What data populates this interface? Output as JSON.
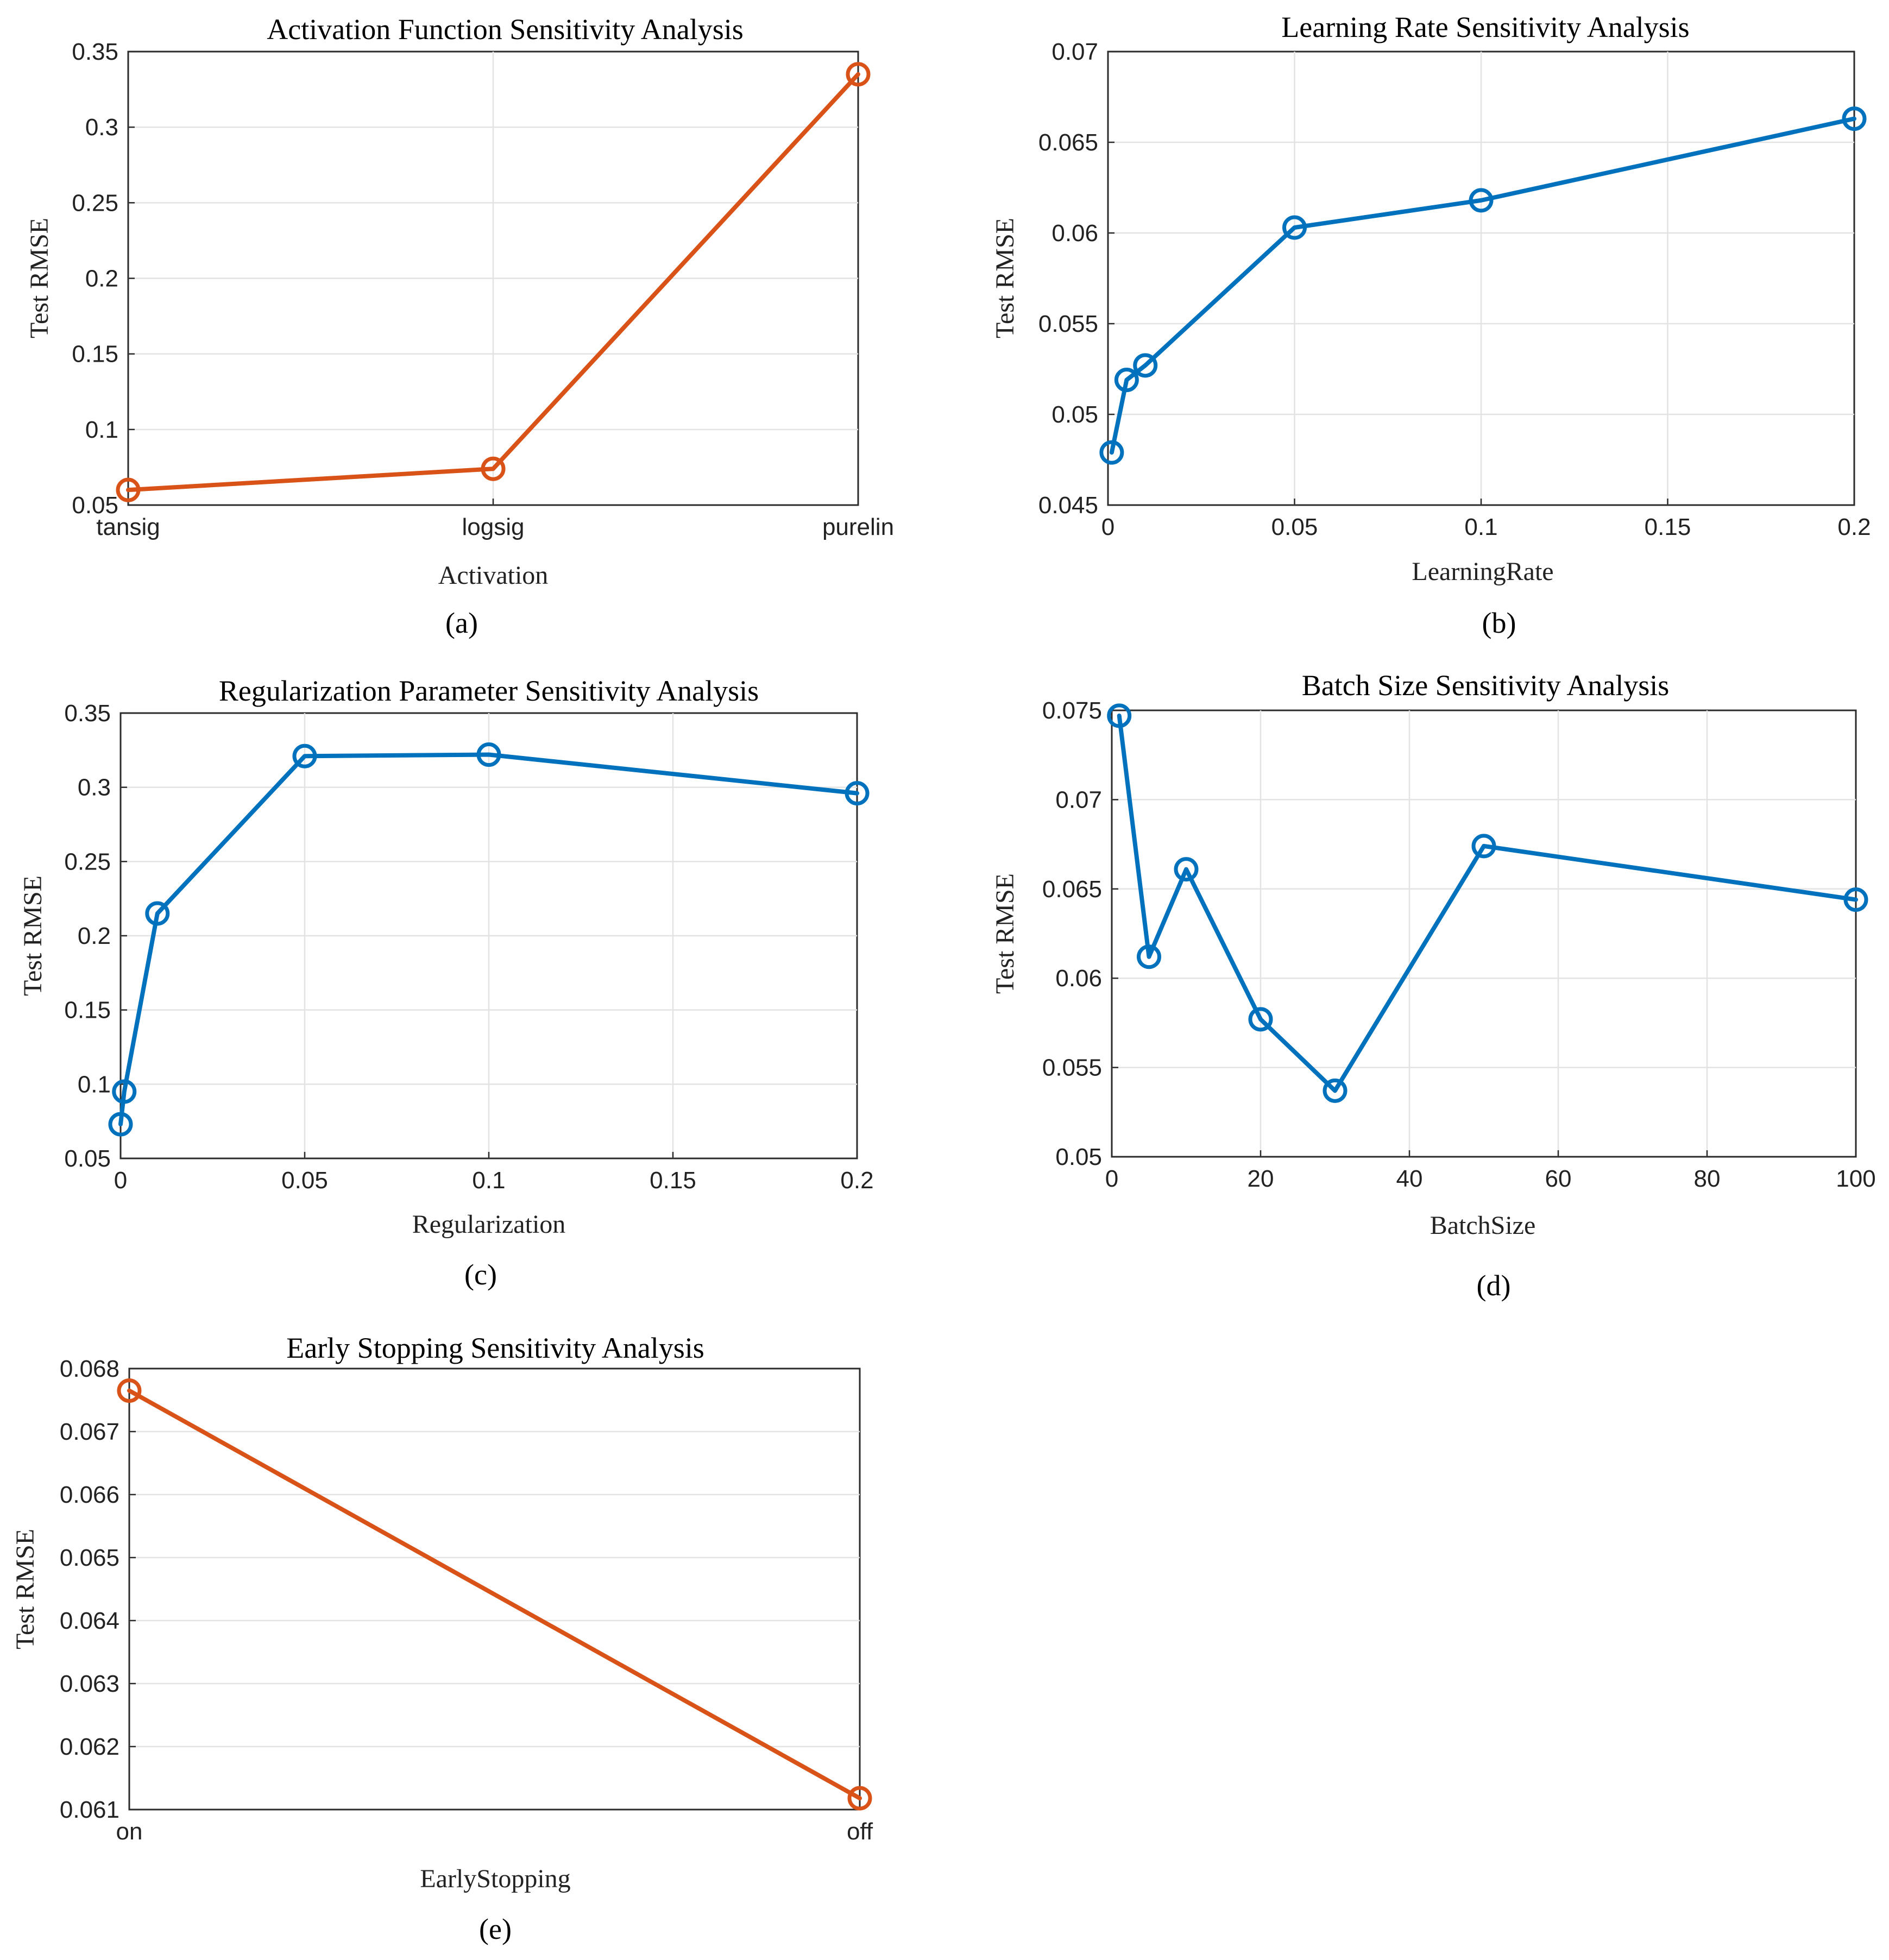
{
  "colors": {
    "blue": "#0072bd",
    "orange": "#d95319"
  },
  "chart_data": [
    {
      "id": "a",
      "type": "line",
      "color": "#d95319",
      "categorical": true,
      "title": "Activation Function Sensitivity Analysis",
      "xlabel": "Activation",
      "ylabel": "Test RMSE",
      "caption": "(a)",
      "x": [
        0,
        1,
        2
      ],
      "y": [
        0.06,
        0.074,
        0.335
      ],
      "xlim": [
        0,
        2
      ],
      "ylim": [
        0.05,
        0.35
      ],
      "xticks": [
        0,
        1,
        2
      ],
      "xtick_labels": [
        "tansig",
        "logsig",
        "purelin"
      ],
      "yticks": [
        0.05,
        0.1,
        0.15,
        0.2,
        0.25,
        0.3,
        0.35
      ],
      "ytick_labels": [
        "0.05",
        "0.1",
        "0.15",
        "0.2",
        "0.25",
        "0.3",
        "0.35"
      ],
      "grid": true
    },
    {
      "id": "b",
      "type": "line",
      "color": "#0072bd",
      "title": "Learning Rate Sensitivity Analysis",
      "xlabel": "LearningRate",
      "ylabel": "Test RMSE",
      "caption": "(b)",
      "x": [
        0.001,
        0.005,
        0.01,
        0.05,
        0.1,
        0.2
      ],
      "y": [
        0.0479,
        0.0519,
        0.0527,
        0.0603,
        0.0618,
        0.0663
      ],
      "xlim": [
        0,
        0.2
      ],
      "ylim": [
        0.045,
        0.07
      ],
      "xticks": [
        0,
        0.05,
        0.1,
        0.15,
        0.2
      ],
      "xtick_labels": [
        "0",
        "0.05",
        "0.1",
        "0.15",
        "0.2"
      ],
      "yticks": [
        0.045,
        0.05,
        0.055,
        0.06,
        0.065,
        0.07
      ],
      "ytick_labels": [
        "0.045",
        "0.05",
        "0.055",
        "0.06",
        "0.065",
        "0.07"
      ],
      "grid": true
    },
    {
      "id": "c",
      "type": "line",
      "color": "#0072bd",
      "title": "Regularization Parameter Sensitivity Analysis",
      "xlabel": "Regularization",
      "ylabel": "Test RMSE",
      "caption": "(c)",
      "x": [
        0,
        0.001,
        0.01,
        0.05,
        0.1,
        0.2
      ],
      "y": [
        0.073,
        0.095,
        0.215,
        0.321,
        0.322,
        0.296
      ],
      "xlim": [
        0,
        0.2
      ],
      "ylim": [
        0.05,
        0.35
      ],
      "xticks": [
        0,
        0.05,
        0.1,
        0.15,
        0.2
      ],
      "xtick_labels": [
        "0",
        "0.05",
        "0.1",
        "0.15",
        "0.2"
      ],
      "yticks": [
        0.05,
        0.1,
        0.15,
        0.2,
        0.25,
        0.3,
        0.35
      ],
      "ytick_labels": [
        "0.05",
        "0.1",
        "0.15",
        "0.2",
        "0.25",
        "0.3",
        "0.35"
      ],
      "grid": true
    },
    {
      "id": "d",
      "type": "line",
      "color": "#0072bd",
      "title": "Batch Size Sensitivity Analysis",
      "xlabel": "BatchSize",
      "ylabel": "Test RMSE",
      "caption": "(d)",
      "x": [
        1,
        5,
        10,
        20,
        30,
        50,
        100
      ],
      "y": [
        0.0747,
        0.0612,
        0.0661,
        0.0577,
        0.0537,
        0.0674,
        0.0644
      ],
      "xlim": [
        0,
        100
      ],
      "ylim": [
        0.05,
        0.075
      ],
      "xticks": [
        0,
        20,
        40,
        60,
        80,
        100
      ],
      "xtick_labels": [
        "0",
        "20",
        "40",
        "60",
        "80",
        "100"
      ],
      "yticks": [
        0.05,
        0.055,
        0.06,
        0.065,
        0.07,
        0.075
      ],
      "ytick_labels": [
        "0.05",
        "0.055",
        "0.06",
        "0.065",
        "0.07",
        "0.075"
      ],
      "grid": true
    },
    {
      "id": "e",
      "type": "line",
      "color": "#d95319",
      "categorical": true,
      "title": "Early Stopping Sensitivity Analysis",
      "xlabel": "EarlyStopping",
      "ylabel": "Test RMSE",
      "caption": "(e)",
      "x": [
        0,
        1
      ],
      "y": [
        0.06765,
        0.06118
      ],
      "xlim": [
        0,
        1
      ],
      "ylim": [
        0.061,
        0.068
      ],
      "xticks": [
        0,
        1
      ],
      "xtick_labels": [
        "on",
        "off"
      ],
      "yticks": [
        0.061,
        0.062,
        0.063,
        0.064,
        0.065,
        0.066,
        0.067,
        0.068
      ],
      "ytick_labels": [
        "0.061",
        "0.062",
        "0.063",
        "0.064",
        "0.065",
        "0.066",
        "0.067",
        "0.068"
      ],
      "grid": true
    }
  ]
}
